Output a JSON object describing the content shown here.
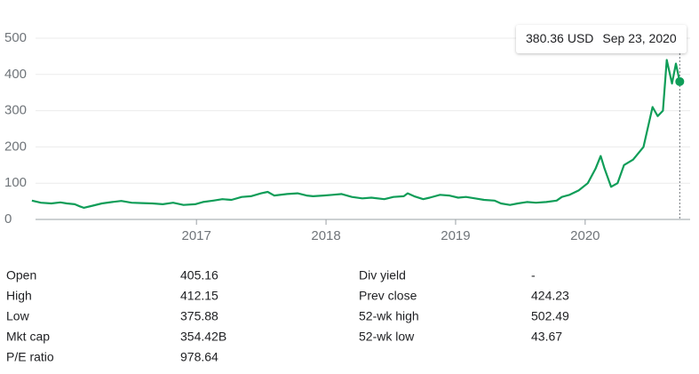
{
  "chart_data": {
    "type": "line",
    "color": "#0f9d58",
    "grid": true,
    "x": [
      2015.73,
      2015.8,
      2015.88,
      2015.95,
      2016.0,
      2016.06,
      2016.1,
      2016.13,
      2016.2,
      2016.27,
      2016.35,
      2016.42,
      2016.5,
      2016.58,
      2016.66,
      2016.74,
      2016.82,
      2016.9,
      2016.99,
      2017.05,
      2017.13,
      2017.2,
      2017.27,
      2017.35,
      2017.42,
      2017.5,
      2017.55,
      2017.6,
      2017.7,
      2017.78,
      2017.85,
      2017.9,
      2017.98,
      2018.05,
      2018.12,
      2018.2,
      2018.28,
      2018.35,
      2018.45,
      2018.52,
      2018.6,
      2018.63,
      2018.68,
      2018.75,
      2018.8,
      2018.88,
      2018.95,
      2019.02,
      2019.08,
      2019.15,
      2019.22,
      2019.3,
      2019.35,
      2019.42,
      2019.48,
      2019.55,
      2019.62,
      2019.7,
      2019.78,
      2019.82,
      2019.88,
      2019.95,
      2020.02,
      2020.08,
      2020.12,
      2020.15,
      2020.2,
      2020.25,
      2020.3,
      2020.37,
      2020.45,
      2020.52,
      2020.56,
      2020.6,
      2020.63,
      2020.67,
      2020.7,
      2020.73
    ],
    "values": [
      52,
      46,
      44,
      47,
      44,
      42,
      36,
      32,
      38,
      44,
      48,
      51,
      46,
      45,
      44,
      42,
      46,
      40,
      42,
      48,
      52,
      56,
      54,
      62,
      64,
      72,
      76,
      66,
      70,
      72,
      66,
      64,
      66,
      68,
      70,
      62,
      58,
      60,
      56,
      62,
      64,
      72,
      64,
      56,
      60,
      68,
      66,
      60,
      62,
      58,
      54,
      52,
      44,
      40,
      44,
      48,
      46,
      48,
      52,
      62,
      68,
      80,
      100,
      140,
      175,
      140,
      90,
      100,
      150,
      165,
      200,
      310,
      285,
      300,
      440,
      375,
      430,
      380.36
    ],
    "xlim": [
      2015.71,
      2020.81
    ],
    "xticks": [
      2017,
      2018,
      2019,
      2020
    ],
    "ylim": [
      0,
      500
    ],
    "yticks": [
      0,
      100,
      200,
      300,
      400,
      500
    ],
    "tooltip": {
      "value": 380.36,
      "unit": "USD",
      "date": "Sep 23, 2020"
    }
  },
  "stats": [
    [
      {
        "label": "Open",
        "value": "405.16"
      },
      {
        "label": "High",
        "value": "412.15"
      },
      {
        "label": "Low",
        "value": "375.88"
      },
      {
        "label": "Mkt cap",
        "value": "354.42B"
      },
      {
        "label": "P/E ratio",
        "value": "978.64"
      }
    ],
    [
      {
        "label": "Div yield",
        "value": "-"
      },
      {
        "label": "Prev close",
        "value": "424.23"
      },
      {
        "label": "52-wk high",
        "value": "502.49"
      },
      {
        "label": "52-wk low",
        "value": "43.67"
      }
    ]
  ]
}
